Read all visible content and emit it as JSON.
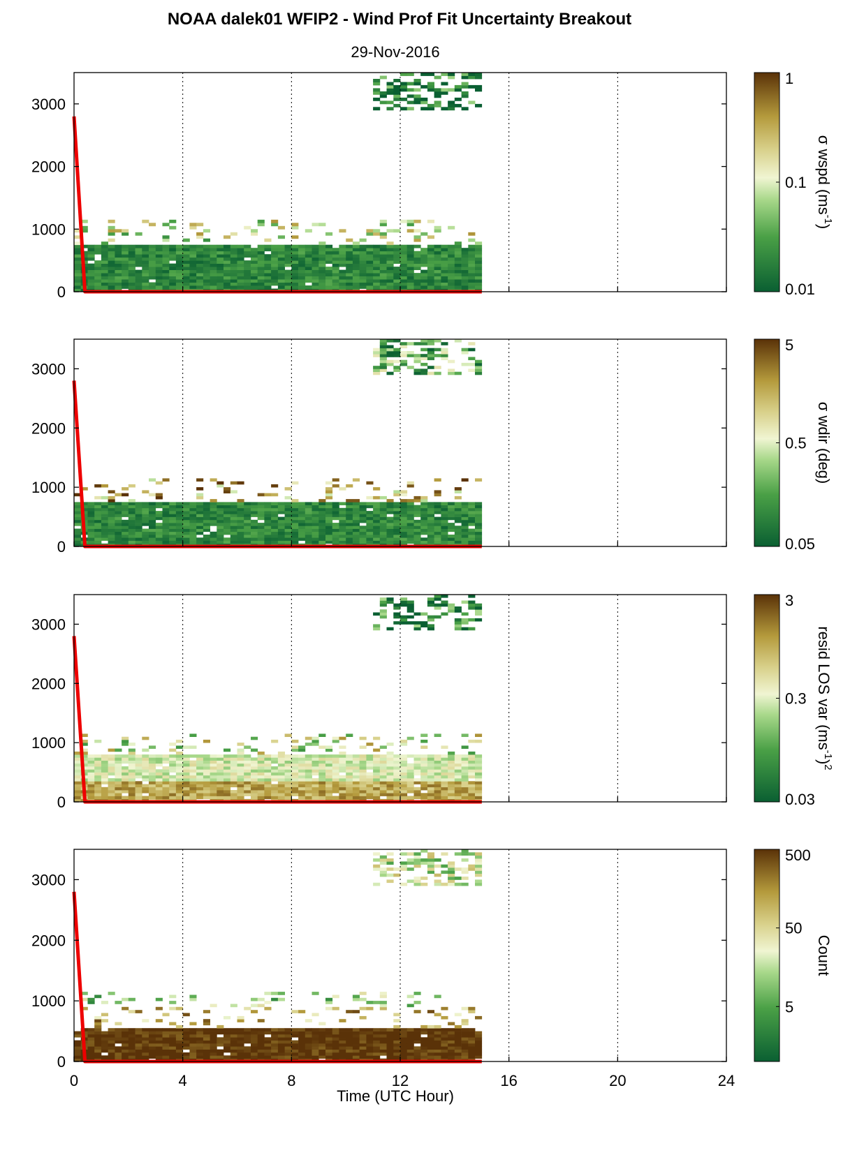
{
  "figure": {
    "title": "NOAA dalek01 WFIP2 - Wind Prof Fit Uncertainty Breakout",
    "subtitle": "29-Nov-2016",
    "xlabel": "Time (UTC Hour)"
  },
  "chart_data": [
    {
      "type": "heatmap",
      "xlim": [
        0,
        24
      ],
      "ylim": [
        0,
        3500
      ],
      "x_ticks": [
        "0",
        "4",
        "8",
        "12",
        "16",
        "20",
        "24"
      ],
      "y_ticks": [
        "0",
        "1000",
        "2000",
        "3000"
      ],
      "grid": "vertical dotted at x ticks",
      "colorbar": {
        "label": "σ wspd (ms-1)",
        "label_main": "σ wspd (ms",
        "label_sup": "-1",
        "label_end": ")",
        "scale": "log",
        "range": [
          0.01,
          1
        ],
        "ticks": [
          "0.01",
          "0.1",
          "1"
        ]
      },
      "data_extent_hours": [
        0,
        15
      ],
      "overlay_line": {
        "color": "#ee0000",
        "points": [
          [
            0,
            2800
          ],
          [
            0.4,
            0
          ],
          [
            15,
            0
          ]
        ]
      },
      "color_zones": [
        {
          "height_range": [
            0,
            750
          ],
          "typical_value": 0.02
        },
        {
          "height_range": [
            750,
            1150
          ],
          "typical_value": 0.1
        },
        {
          "height_range": [
            2900,
            3500
          ],
          "typical_value": 0.015,
          "time_range": [
            11,
            15
          ]
        }
      ]
    },
    {
      "type": "heatmap",
      "xlim": [
        0,
        24
      ],
      "ylim": [
        0,
        3500
      ],
      "x_ticks": [
        "0",
        "4",
        "8",
        "12",
        "16",
        "20",
        "24"
      ],
      "y_ticks": [
        "0",
        "1000",
        "2000",
        "3000"
      ],
      "grid": "vertical dotted at x ticks",
      "colorbar": {
        "label": "σ wdir (deg)",
        "label_main": "σ wdir (deg)",
        "label_sup": "",
        "label_end": "",
        "scale": "log",
        "range": [
          0.05,
          5
        ],
        "ticks": [
          "0.05",
          "0.5",
          "5"
        ]
      },
      "data_extent_hours": [
        0,
        15
      ],
      "overlay_line": {
        "color": "#ee0000",
        "points": [
          [
            0,
            2800
          ],
          [
            0.4,
            0
          ],
          [
            15,
            0
          ]
        ]
      },
      "color_zones": [
        {
          "height_range": [
            0,
            750
          ],
          "typical_value": 0.1
        },
        {
          "height_range": [
            750,
            1150
          ],
          "typical_value": 1.5
        },
        {
          "height_range": [
            2900,
            3500
          ],
          "typical_value": 0.2,
          "time_range": [
            11,
            15
          ]
        }
      ]
    },
    {
      "type": "heatmap",
      "xlim": [
        0,
        24
      ],
      "ylim": [
        0,
        3500
      ],
      "x_ticks": [
        "0",
        "4",
        "8",
        "12",
        "16",
        "20",
        "24"
      ],
      "y_ticks": [
        "0",
        "1000",
        "2000",
        "3000"
      ],
      "grid": "vertical dotted at x ticks",
      "colorbar": {
        "label": "resid LOS var (ms-1)2",
        "label_main": "resid LOS var (ms",
        "label_sup": "-1",
        "label_end": ")",
        "label_sup2": "2",
        "scale": "log",
        "range": [
          0.03,
          3
        ],
        "ticks": [
          "0.03",
          "0.3",
          "3"
        ]
      },
      "data_extent_hours": [
        0,
        15
      ],
      "overlay_line": {
        "color": "#ee0000",
        "points": [
          [
            0,
            2800
          ],
          [
            0.4,
            0
          ],
          [
            15,
            0
          ]
        ]
      },
      "color_zones": [
        {
          "height_range": [
            0,
            350
          ],
          "typical_value": 1.0
        },
        {
          "height_range": [
            350,
            800
          ],
          "typical_value": 0.3
        },
        {
          "height_range": [
            800,
            1150
          ],
          "typical_value": 0.3
        },
        {
          "height_range": [
            2900,
            3500
          ],
          "typical_value": 0.05,
          "time_range": [
            11,
            15
          ]
        }
      ]
    },
    {
      "type": "heatmap",
      "xlim": [
        0,
        24
      ],
      "ylim": [
        0,
        3500
      ],
      "x_ticks": [
        "0",
        "4",
        "8",
        "12",
        "16",
        "20",
        "24"
      ],
      "y_ticks": [
        "0",
        "1000",
        "2000",
        "3000"
      ],
      "grid": "vertical dotted at x ticks",
      "colorbar": {
        "label": "Count",
        "label_main": "Count",
        "label_sup": "",
        "label_end": "",
        "scale": "log",
        "range": [
          1,
          500
        ],
        "ticks": [
          "5",
          "50",
          "500"
        ]
      },
      "data_extent_hours": [
        0,
        15
      ],
      "overlay_line": {
        "color": "#ee0000",
        "points": [
          [
            0,
            2800
          ],
          [
            0.4,
            0
          ],
          [
            15,
            0
          ]
        ]
      },
      "color_zones": [
        {
          "height_range": [
            0,
            550
          ],
          "typical_value": 500
        },
        {
          "height_range": [
            550,
            900
          ],
          "typical_value": 100
        },
        {
          "height_range": [
            900,
            1150
          ],
          "typical_value": 10
        },
        {
          "height_range": [
            2900,
            3500
          ],
          "typical_value": 20,
          "time_range": [
            11,
            15
          ]
        }
      ]
    }
  ],
  "colors": {
    "brown_dark": "#5a3208",
    "tan": "#b49a3c",
    "pale": "#f0f5d2",
    "green_light": "#8cc864",
    "green_dark": "#0a5f32",
    "red_line": "#ee0000"
  }
}
